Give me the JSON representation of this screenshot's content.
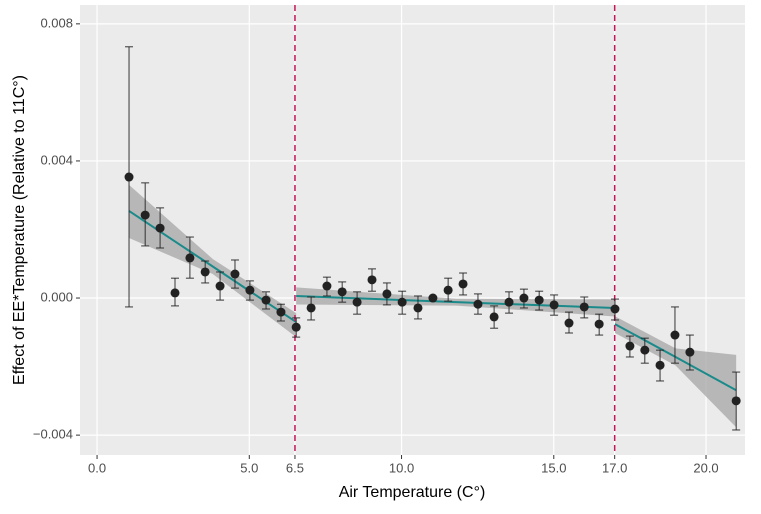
{
  "chart_data": {
    "type": "scatter",
    "x_label": "Air Temperature (C°)",
    "y_label": "Effect of EE*Temperature (Relative to 11C°)",
    "xlim": [
      -0.56,
      21.28
    ],
    "ylim": [
      -0.00458,
      0.00855
    ],
    "xticks": [
      {
        "value": 0,
        "label": "0.0"
      },
      {
        "value": 5,
        "label": "5.0"
      },
      6.5,
      {
        "value": 10,
        "label": "10.0"
      },
      {
        "value": 15,
        "label": "15.0"
      },
      {
        "value": 17,
        "label": "17.0"
      },
      {
        "value": 20,
        "label": "20.0"
      }
    ],
    "yticks": [
      {
        "value": -0.004,
        "label": "−0.004"
      },
      {
        "value": 0,
        "label": "0.000"
      },
      0.004,
      0.008
    ],
    "grid": true,
    "series": [
      {
        "color": "#222222",
        "x": [
          1.05,
          1.58,
          2.07,
          2.56,
          3.05,
          3.55,
          4.04,
          4.53,
          5.02,
          5.55,
          6.04,
          6.54,
          7.03,
          7.55,
          8.05,
          8.54,
          9.03,
          9.52,
          10.02,
          10.54,
          11.03,
          11.53,
          12.02,
          12.51,
          13.04,
          13.53,
          14.02,
          14.52,
          15.01,
          15.5,
          16.0,
          16.49,
          17.01,
          17.5,
          17.99,
          18.49,
          18.98,
          19.47,
          20.99
        ],
        "values": [
          0.00353,
          0.00242,
          0.00204,
          0.00015,
          0.00117,
          0.00076,
          0.00035,
          0.0007,
          0.00023,
          -6e-05,
          -0.00041,
          -0.00085,
          -0.00029,
          0.00035,
          0.00018,
          -0.00012,
          0.00053,
          0.00012,
          -0.00012,
          -0.00029,
          0,
          0.00023,
          0.00041,
          -0.00018,
          -0.00055,
          -0.00012,
          0,
          -6e-05,
          -0.0002,
          -0.00073,
          -0.00026,
          -0.00076,
          -0.00032,
          -0.0014,
          -0.00152,
          -0.00196,
          -0.00108,
          -0.00158,
          -0.003
        ],
        "ci_low": [
          -0.00026,
          0.00152,
          0.00146,
          -0.00023,
          0.00058,
          0.00044,
          -6e-05,
          0.00029,
          -6e-05,
          -0.00032,
          -0.00067,
          -0.00114,
          -0.00064,
          6e-05,
          -0.00012,
          -0.00047,
          0.0002,
          -0.0002,
          -0.00047,
          -0.00061,
          -3e-05,
          -9e-05,
          9e-05,
          -0.00047,
          -0.00088,
          -0.00044,
          -0.00029,
          -0.00035,
          -0.0005,
          -0.00102,
          -0.00058,
          -0.00108,
          -0.00064,
          -0.00172,
          -0.0019,
          -0.00242,
          -0.0019,
          -0.0021,
          -0.00385
        ],
        "ci_high": [
          0.00733,
          0.00336,
          0.00263,
          0.00058,
          0.00178,
          0.00108,
          0.00076,
          0.00111,
          0.0005,
          0.00018,
          -0.00018,
          -0.00058,
          3e-05,
          0.00061,
          0.00047,
          0.00018,
          0.00085,
          0.00044,
          0.0002,
          6e-05,
          3e-05,
          0.00058,
          0.00073,
          0.00012,
          -0.00023,
          0.00018,
          0.00026,
          0.0002,
          9e-05,
          -0.00041,
          3e-05,
          -0.00047,
          -3e-05,
          -0.00111,
          -0.00117,
          -0.00152,
          -0.00026,
          -0.00108,
          -0.00216
        ]
      }
    ],
    "fits": [
      {
        "color": "#1b8a8a",
        "ribbon_color": "#a6a6a6",
        "x": [
          1.05,
          3.8,
          6.54
        ],
        "values": [
          0.00254,
          0.00092,
          -0.0007
        ],
        "lower": [
          0.00175,
          0.0007,
          -0.00114
        ],
        "upper": [
          0.0033,
          0.00114,
          -0.00044
        ]
      },
      {
        "color": "#1b8a8a",
        "ribbon_color": "#a6a6a6",
        "x": [
          6.54,
          11.8,
          17.01
        ],
        "values": [
          6e-05,
          -0.00012,
          -0.00029
        ],
        "lower": [
          -0.00019,
          -0.00022,
          -0.00054
        ],
        "upper": [
          0.00031,
          -2e-05,
          -4e-05
        ]
      },
      {
        "color": "#1b8a8a",
        "ribbon_color": "#a6a6a6",
        "x": [
          17.01,
          19,
          20.99
        ],
        "values": [
          -0.00076,
          -0.00172,
          -0.00269
        ],
        "lower": [
          -0.00102,
          -0.00197,
          -0.00377
        ],
        "upper": [
          -0.00053,
          -0.00147,
          -0.00166
        ]
      }
    ],
    "vlines": [
      6.5,
      17
    ],
    "vline_color": "#c2185b"
  }
}
